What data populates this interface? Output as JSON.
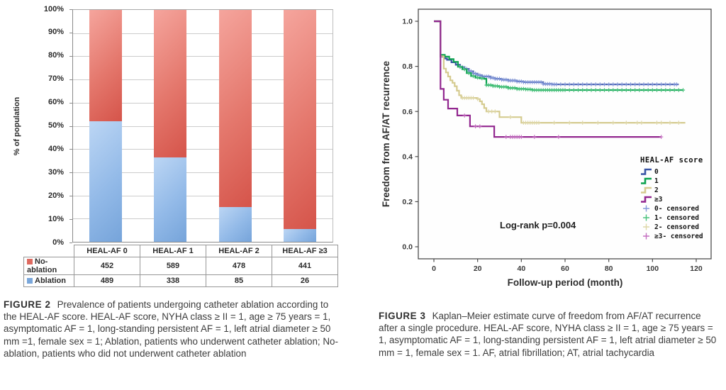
{
  "figure2": {
    "caption_label": "FIGURE 2",
    "caption_text": "Prevalence of patients undergoing catheter ablation according to the HEAL-AF score. HEAL-AF score, NYHA class ≥ II = 1, age ≥ 75 years = 1, asymptomatic AF = 1, long-standing persistent AF = 1, left atrial diameter ≥ 50 mm =1, female sex = 1; Ablation, patients who underwent catheter ablation; No-ablation, patients who did not underwent catheter ablation"
  },
  "figure3": {
    "caption_label": "FIGURE 3",
    "caption_text": "Kaplan–Meier estimate curve of freedom from AF/AT recurrence after a single procedure. HEAL-AF score, NYHA class ≥ II = 1, age ≥ 75 years = 1, asymptomatic AF = 1, long-standing persistent AF = 1, left atrial diameter ≥ 50 mm = 1, female sex = 1. AF, atrial fibrillation; AT, atrial tachycardia"
  },
  "chart_data": [
    {
      "type": "bar",
      "stacked": true,
      "title": "",
      "xlabel": "",
      "ylabel": "% of population",
      "categories": [
        "HEAL-AF 0",
        "HEAL-AF 1",
        "HEAL-AF 2",
        "HEAL-AF ≥3"
      ],
      "series": [
        {
          "name": "No-ablation",
          "values": [
            452,
            589,
            478,
            441
          ],
          "color": "#de6a60"
        },
        {
          "name": "Ablation",
          "values": [
            489,
            338,
            85,
            26
          ],
          "color": "#7aa7db"
        }
      ],
      "ablation_percent_of_population": [
        52.0,
        36.5,
        15.1,
        5.6
      ],
      "y_ticks": [
        "100%",
        "90%",
        "80%",
        "70%",
        "60%",
        "50%",
        "40%",
        "30%",
        "20%",
        "10%",
        "0%"
      ],
      "ylim": [
        0,
        100
      ],
      "grid": "horizontal"
    },
    {
      "type": "line",
      "subtype": "kaplan_meier_step",
      "title": "",
      "xlabel": "Follow-up period (month)",
      "ylabel": "Freedom from AF/AT recurrence",
      "x_ticks": [
        "0",
        "20",
        "40",
        "60",
        "80",
        "100",
        "120"
      ],
      "y_ticks": [
        "1.0",
        "0.8",
        "0.6",
        "0.4",
        "0.2",
        "0.0"
      ],
      "xlim": [
        0,
        120
      ],
      "ylim": [
        0,
        1
      ],
      "annotation": "Log-rank p=0.004",
      "legend_title": "HEAL-AF score",
      "legend_position": "inside right-bottom",
      "grid": "off",
      "series": [
        {
          "name": "0",
          "censored_label": "0- censored",
          "color": "#3954a5",
          "censor_color": "#8498da",
          "points": [
            [
              0,
              1.0
            ],
            [
              3,
              0.843
            ],
            [
              5,
              0.835
            ],
            [
              6,
              0.829
            ],
            [
              8,
              0.818
            ],
            [
              10,
              0.807
            ],
            [
              12,
              0.797
            ],
            [
              14,
              0.789
            ],
            [
              16,
              0.778
            ],
            [
              18,
              0.768
            ],
            [
              20,
              0.761
            ],
            [
              22,
              0.755
            ],
            [
              26,
              0.749
            ],
            [
              28,
              0.745
            ],
            [
              31,
              0.741
            ],
            [
              34,
              0.737
            ],
            [
              38,
              0.733
            ],
            [
              41,
              0.73
            ],
            [
              50,
              0.722
            ],
            [
              54,
              0.72
            ],
            [
              112,
              0.72
            ]
          ],
          "censored": [
            [
              12,
              56,
              1
            ],
            [
              58,
              110,
              2
            ],
            [
              111,
              111,
              1
            ]
          ]
        },
        {
          "name": "1",
          "censored_label": "1- censored",
          "color": "#0ba24f",
          "censor_color": "#49c27b",
          "points": [
            [
              0,
              1.0
            ],
            [
              3,
              0.851
            ],
            [
              5,
              0.843
            ],
            [
              7,
              0.832
            ],
            [
              9,
              0.82
            ],
            [
              11,
              0.798
            ],
            [
              13,
              0.787
            ],
            [
              15,
              0.77
            ],
            [
              17,
              0.757
            ],
            [
              19,
              0.75
            ],
            [
              21,
              0.747
            ],
            [
              23,
              0.745
            ],
            [
              24,
              0.717
            ],
            [
              27,
              0.713
            ],
            [
              30,
              0.709
            ],
            [
              34,
              0.704
            ],
            [
              38,
              0.7
            ],
            [
              42,
              0.698
            ],
            [
              45,
              0.695
            ],
            [
              114,
              0.695
            ]
          ],
          "censored": [
            [
              12,
              22,
              2
            ],
            [
              24,
              60,
              1
            ],
            [
              62,
              114,
              2
            ]
          ]
        },
        {
          "name": "2",
          "censored_label": "2- censored",
          "color": "#d5cb90",
          "censor_color": "#ded7a8",
          "points": [
            [
              0,
              1.0
            ],
            [
              3,
              0.845
            ],
            [
              4.5,
              0.79
            ],
            [
              5.5,
              0.773
            ],
            [
              6.5,
              0.755
            ],
            [
              7.5,
              0.738
            ],
            [
              8.5,
              0.727
            ],
            [
              9.5,
              0.712
            ],
            [
              10.5,
              0.692
            ],
            [
              11.5,
              0.672
            ],
            [
              12.5,
              0.66
            ],
            [
              20,
              0.655
            ],
            [
              21,
              0.645
            ],
            [
              22,
              0.632
            ],
            [
              23,
              0.615
            ],
            [
              24,
              0.6
            ],
            [
              30,
              0.575
            ],
            [
              40,
              0.55
            ],
            [
              115,
              0.55
            ]
          ],
          "censored": [
            [
              13,
              18,
              1
            ],
            [
              20,
              20,
              1
            ],
            [
              25,
              28,
              1.5
            ],
            [
              35,
              35,
              1
            ],
            [
              41,
              48,
              1
            ],
            [
              55,
              55,
              1
            ],
            [
              62,
              62,
              1
            ],
            [
              68,
              68,
              1
            ],
            [
              75,
              75,
              1
            ],
            [
              82,
              82,
              1
            ],
            [
              88,
              88,
              1
            ],
            [
              93,
              95,
              2
            ],
            [
              102,
              104,
              2
            ],
            [
              108,
              108,
              1
            ],
            [
              112,
              112,
              1
            ]
          ]
        },
        {
          "name": "≥3",
          "censored_label": "≥3- censored",
          "color": "#92278f",
          "censor_color": "#c46ec0",
          "points": [
            [
              0,
              1.0
            ],
            [
              3,
              0.7
            ],
            [
              4.5,
              0.652
            ],
            [
              6.5,
              0.613
            ],
            [
              10.7,
              0.582
            ],
            [
              16.5,
              0.534
            ],
            [
              27.6,
              0.487
            ],
            [
              104,
              0.487
            ]
          ],
          "censored": [
            [
              14,
              14,
              1
            ],
            [
              19,
              19,
              1
            ],
            [
              21,
              21,
              1
            ],
            [
              33,
              33,
              1
            ],
            [
              35,
              40,
              1
            ],
            [
              46,
              46,
              1
            ],
            [
              57,
              57,
              1
            ],
            [
              104,
              104,
              1
            ]
          ]
        }
      ]
    }
  ]
}
